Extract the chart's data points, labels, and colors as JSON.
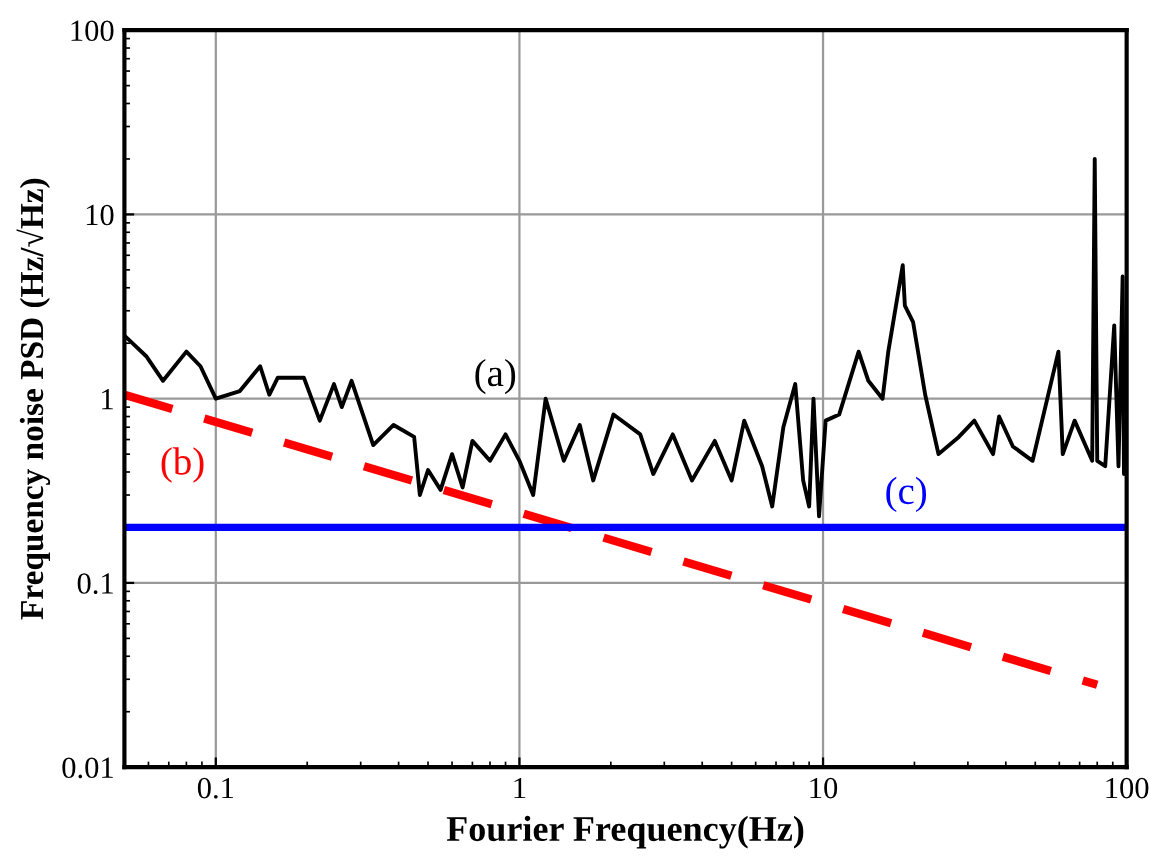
{
  "chart_data": {
    "type": "line",
    "xlabel": "Fourier Frequency(Hz)",
    "ylabel": "Frequency noise PSD (Hz/√Hz)",
    "log": "xy",
    "xlim": [
      0.05,
      100
    ],
    "ylim": [
      0.01,
      100
    ],
    "xticks": [
      0.1,
      1,
      10,
      100
    ],
    "yticks": [
      0.01,
      0.1,
      1,
      10,
      100
    ],
    "grid": true,
    "series": [
      {
        "color": "#000000",
        "line_style": "solid",
        "x": [
          0.05,
          0.059,
          0.067,
          0.08,
          0.089,
          0.1,
          0.12,
          0.14,
          0.15,
          0.16,
          0.195,
          0.22,
          0.245,
          0.26,
          0.28,
          0.33,
          0.385,
          0.45,
          0.47,
          0.5,
          0.55,
          0.6,
          0.65,
          0.7,
          0.8,
          0.9,
          1.0,
          1.11,
          1.22,
          1.4,
          1.58,
          1.75,
          2.04,
          2.5,
          2.76,
          3.2,
          3.7,
          4.4,
          5.0,
          5.5,
          6.3,
          6.8,
          7.4,
          8.1,
          8.6,
          9.0,
          9.3,
          9.7,
          10.2,
          11.3,
          13.1,
          14.1,
          15.7,
          16.4,
          18.3,
          18.6,
          19.8,
          21.7,
          24.0,
          28.0,
          31.5,
          36.3,
          38.0,
          42.2,
          49,
          59.6,
          61.6,
          67.4,
          77,
          78.5,
          80,
          85,
          91,
          94,
          97,
          98,
          100
        ],
        "values": [
          2.2,
          1.7,
          1.25,
          1.8,
          1.5,
          1.0,
          1.1,
          1.5,
          1.05,
          1.3,
          1.3,
          0.76,
          1.2,
          0.9,
          1.25,
          0.56,
          0.72,
          0.62,
          0.3,
          0.41,
          0.32,
          0.5,
          0.33,
          0.59,
          0.46,
          0.64,
          0.46,
          0.3,
          1.0,
          0.46,
          0.72,
          0.36,
          0.82,
          0.64,
          0.39,
          0.64,
          0.36,
          0.59,
          0.36,
          0.76,
          0.43,
          0.26,
          0.7,
          1.2,
          0.36,
          0.26,
          1.0,
          0.23,
          0.76,
          0.82,
          1.8,
          1.25,
          1.0,
          1.8,
          5.3,
          3.2,
          2.6,
          1.05,
          0.5,
          0.62,
          0.76,
          0.5,
          0.8,
          0.55,
          0.46,
          1.8,
          0.5,
          0.76,
          0.46,
          20,
          0.46,
          0.43,
          2.5,
          0.43,
          4.6,
          0.39,
          0.4
        ]
      },
      {
        "color": "#ff0000",
        "line_style": "dashed",
        "x": [
          0.05,
          80
        ],
        "values": [
          1.05,
          0.028
        ]
      },
      {
        "color": "#0000ff",
        "line_style": "solid",
        "x": [
          0.05,
          100
        ],
        "values": [
          0.2,
          0.2
        ]
      }
    ],
    "annotations": [
      "(a)",
      "(b)",
      "(c)"
    ]
  }
}
